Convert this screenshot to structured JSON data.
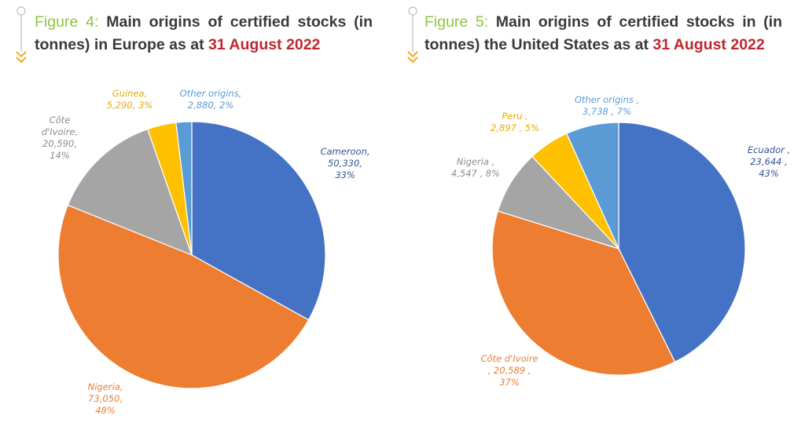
{
  "figures": [
    {
      "label": "Figure 4:",
      "title": " Main origins of certified stocks (in tonnes) in Europe as at ",
      "date": "31 August 2022"
    },
    {
      "label": "Figure 5:",
      "title": " Main origins of certified stocks in (in tonnes) the United States as at ",
      "date": "31 August 2022"
    }
  ],
  "colors": {
    "blue": "#4472c4",
    "orange": "#ed7d31",
    "gray": "#a5a5a5",
    "yellow": "#ffc000",
    "lightblue": "#5b9bd5",
    "figure_label": "#8dc63f",
    "date": "#c0272d",
    "marker": "#f5a623"
  },
  "chart_data": [
    {
      "type": "pie",
      "title": "Main origins of certified stocks (in tonnes) in Europe as at 31 August 2022",
      "start": "12 o'clock, clockwise",
      "slices": [
        {
          "name": "Cameroon",
          "value": 50330,
          "percent": 33,
          "color": "#4472c4",
          "label_lines": [
            "Cameroon,",
            "50,330,",
            "33%"
          ],
          "label_color": "#2f5597"
        },
        {
          "name": "Nigeria",
          "value": 73050,
          "percent": 48,
          "color": "#ed7d31",
          "label_lines": [
            "Nigeria,",
            "73,050,",
            "48%"
          ],
          "label_color": "#ed7d31"
        },
        {
          "name": "Côte d'Ivoire",
          "value": 20590,
          "percent": 14,
          "color": "#a5a5a5",
          "label_lines": [
            "Côte",
            "d'Ivoire,",
            "20,590,",
            "14%"
          ],
          "label_color": "#8c8c8c"
        },
        {
          "name": "Guinea",
          "value": 5290,
          "percent": 3,
          "color": "#ffc000",
          "label_lines": [
            "Guinea,",
            "5,290, 3%"
          ],
          "label_color": "#e6ac00"
        },
        {
          "name": "Other origins",
          "value": 2880,
          "percent": 2,
          "color": "#5b9bd5",
          "label_lines": [
            "Other origins,",
            "2,880, 2%"
          ],
          "label_color": "#5b9bd5"
        }
      ]
    },
    {
      "type": "pie",
      "title": "Main origins of certified stocks in (in tonnes) the United States as at 31 August 2022",
      "start": "12 o'clock, clockwise",
      "slices": [
        {
          "name": "Ecuador",
          "value": 23644,
          "percent": 43,
          "color": "#4472c4",
          "label_lines": [
            "Ecuador ,",
            "23,644 ,",
            "43%"
          ],
          "label_color": "#2f5597"
        },
        {
          "name": "Côte d'Ivoire",
          "value": 20589,
          "percent": 37,
          "color": "#ed7d31",
          "label_lines": [
            "Côte d'Ivoire",
            ", 20,589 ,",
            "37%"
          ],
          "label_color": "#ed7d31"
        },
        {
          "name": "Nigeria",
          "value": 4547,
          "percent": 8,
          "color": "#a5a5a5",
          "label_lines": [
            "Nigeria ,",
            "4,547 , 8%"
          ],
          "label_color": "#8c8c8c"
        },
        {
          "name": "Peru",
          "value": 2897,
          "percent": 5,
          "color": "#ffc000",
          "label_lines": [
            "Peru ,",
            "2,897 , 5%"
          ],
          "label_color": "#e6ac00"
        },
        {
          "name": "Other origins",
          "value": 3738,
          "percent": 7,
          "color": "#5b9bd5",
          "label_lines": [
            "Other origins ,",
            "3,738 , 7%"
          ],
          "label_color": "#5b9bd5"
        }
      ]
    }
  ]
}
